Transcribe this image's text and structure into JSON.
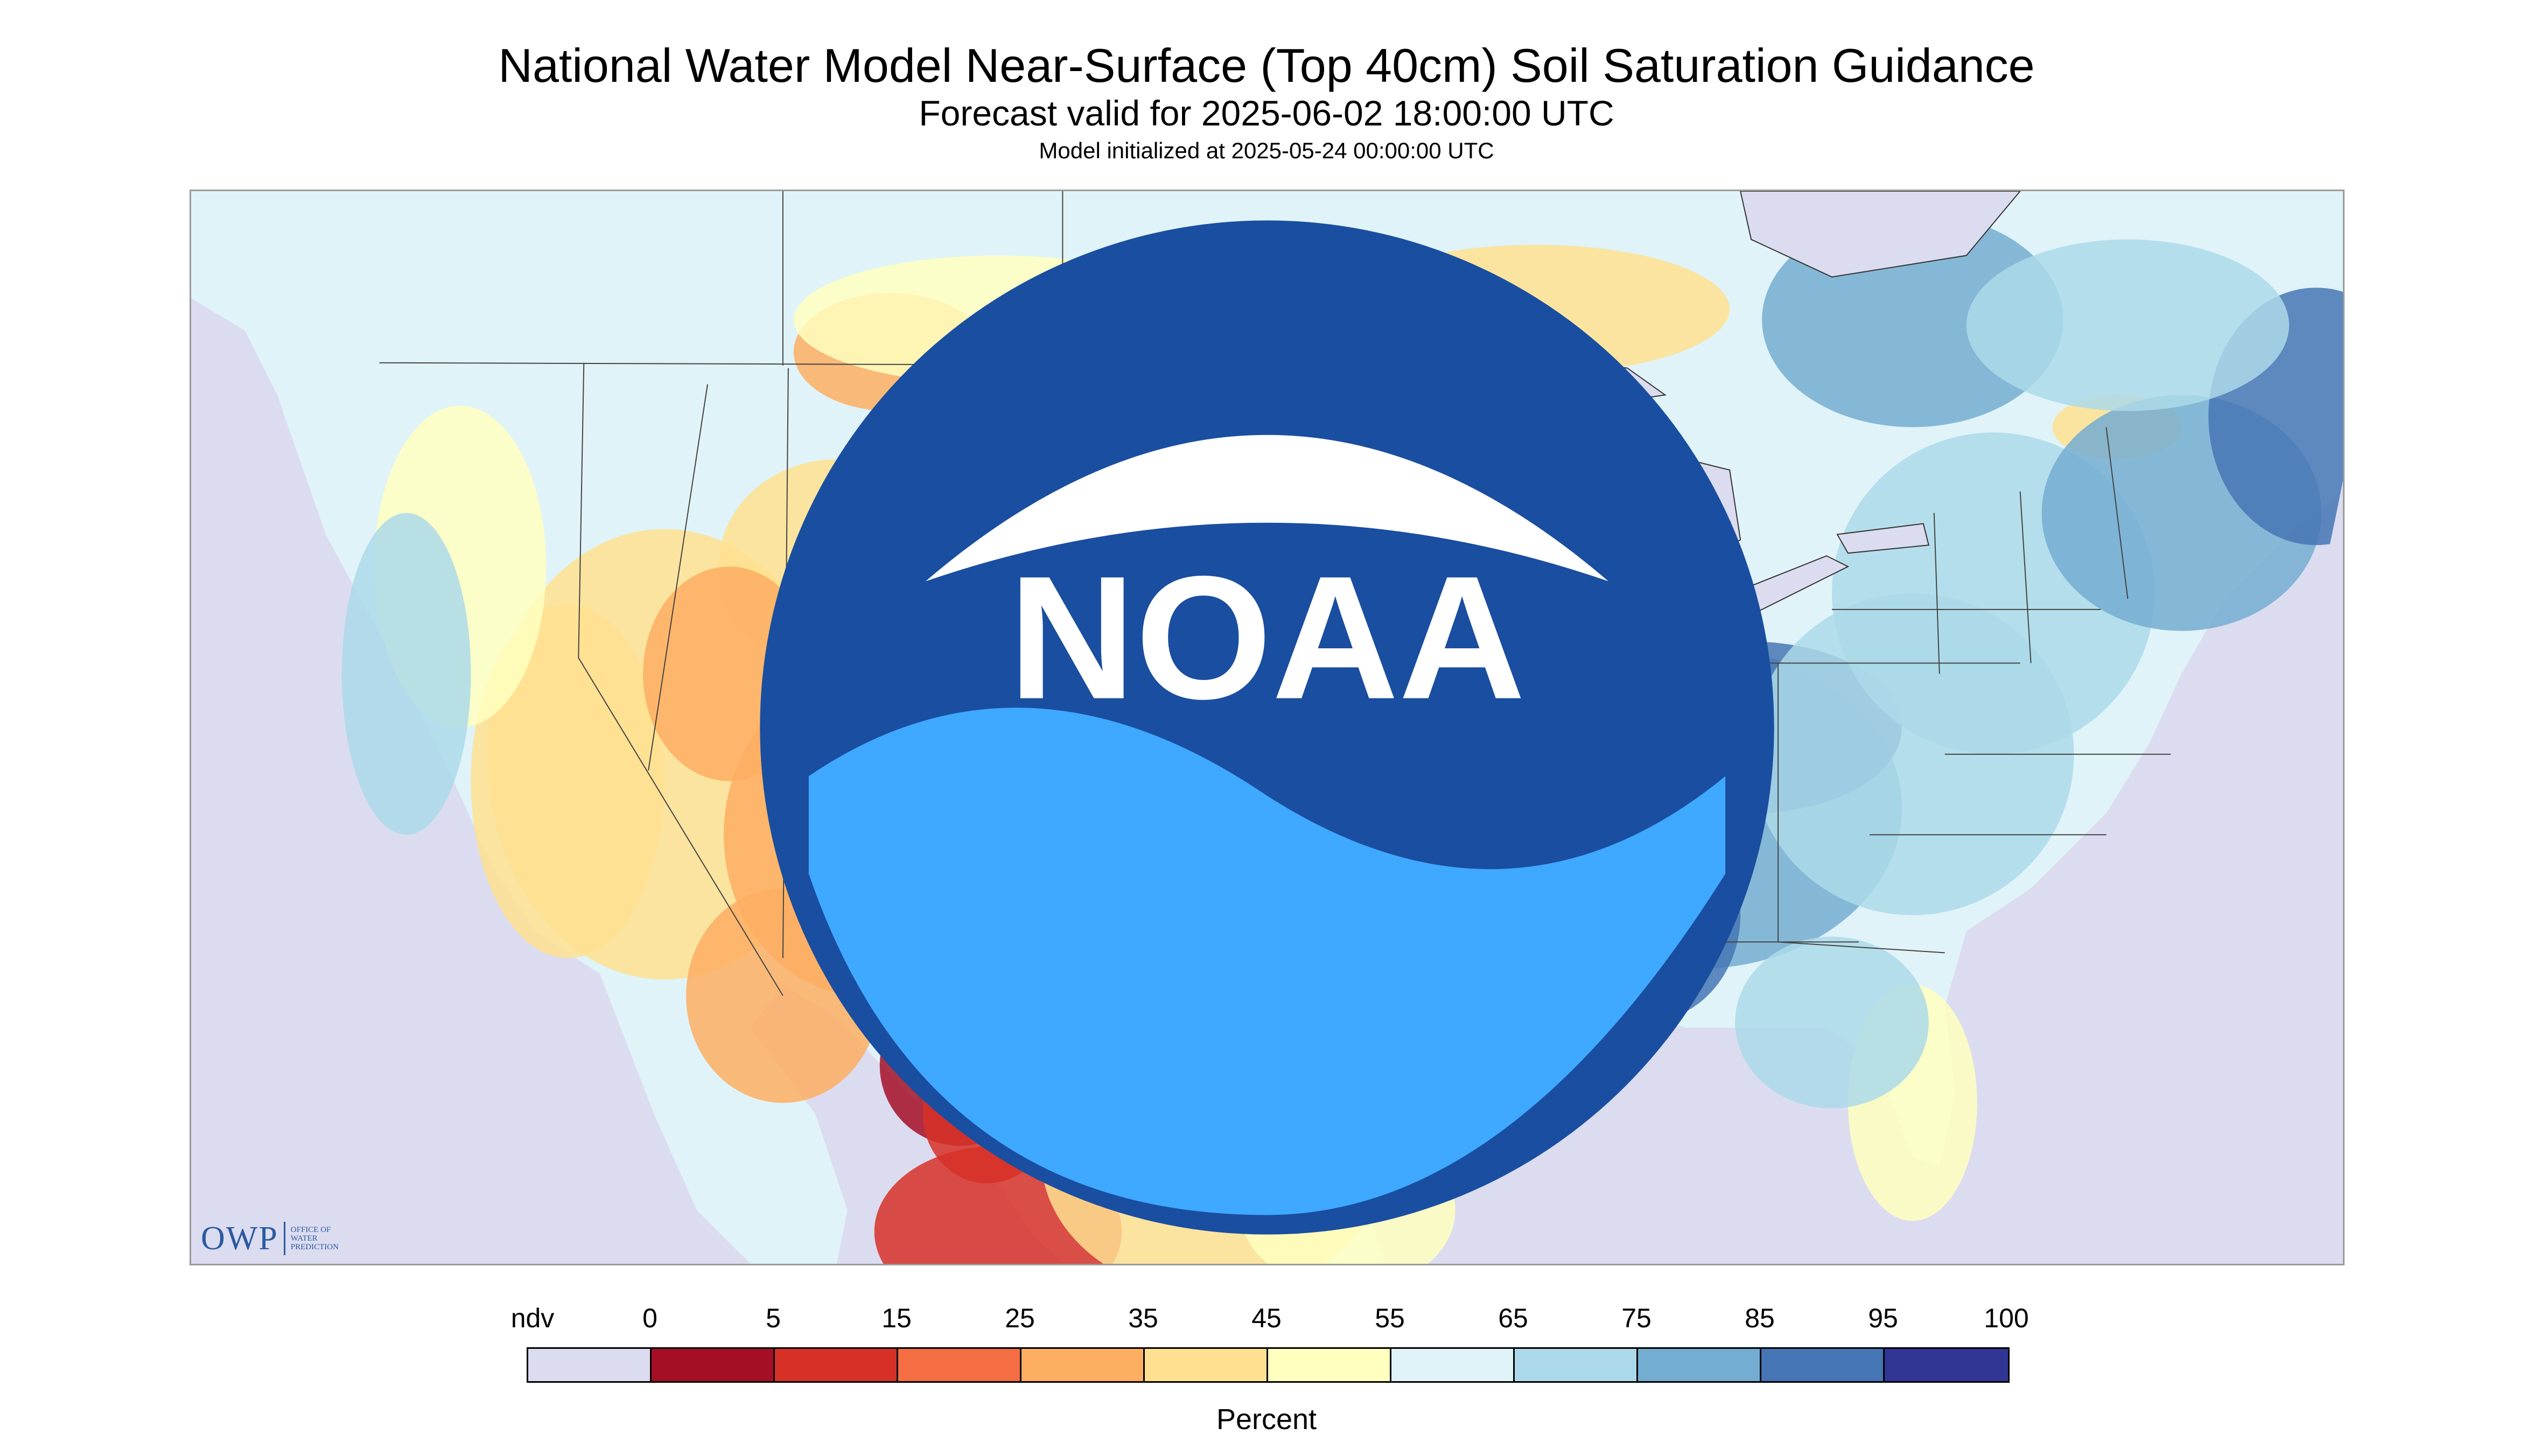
{
  "header": {
    "title": "National Water Model Near-Surface (Top 40cm) Soil Saturation Guidance",
    "subtitle": "Forecast valid for 2025-06-02 18:00:00 UTC",
    "init_line": "Model initialized at 2025-05-24 00:00:00 UTC"
  },
  "logos": {
    "owp_main": "OWP",
    "owp_sub_lines": [
      "OFFICE OF",
      "WATER",
      "PREDICTION"
    ],
    "noaa_text": "NOAA"
  },
  "legend": {
    "nodata_label": "ndv",
    "tick_labels": [
      "0",
      "5",
      "15",
      "25",
      "35",
      "45",
      "55",
      "65",
      "75",
      "85",
      "95",
      "100"
    ],
    "unit": "Percent",
    "colors": [
      "#dcdcf0",
      "#a50f26",
      "#d73027",
      "#f46d43",
      "#fdae61",
      "#fee090",
      "#ffffbf",
      "#e0f3f8",
      "#abd9e9",
      "#74add1",
      "#4575b4",
      "#313695"
    ]
  },
  "map": {
    "ocean_color": "#dcdcf0",
    "lake_color": "#dcdcf0",
    "region": "Contiguous United States with parts of Canada and Mexico"
  }
}
